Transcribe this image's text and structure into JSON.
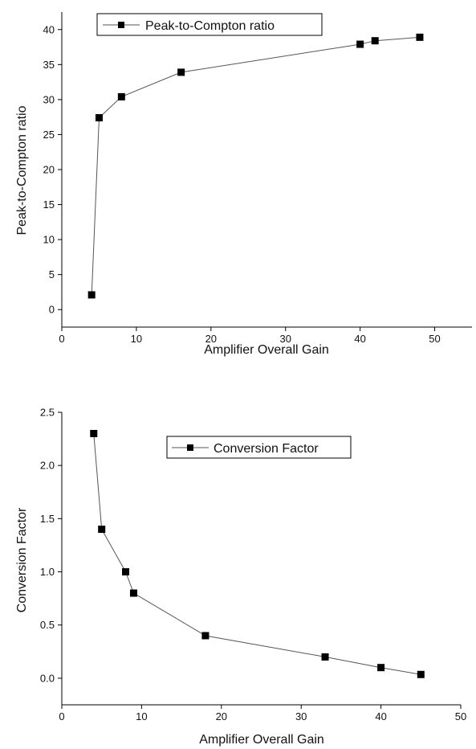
{
  "colors": {
    "line": "#555555",
    "marker": "#000000",
    "axis": "#000000"
  },
  "chart_data": [
    {
      "type": "line",
      "xlabel": "Amplifier Overall Gain",
      "ylabel": "Peak-to-Compton ratio",
      "xlim": [
        0,
        55
      ],
      "ylim": [
        -2.5,
        42.5
      ],
      "xticks": [
        0,
        10,
        20,
        30,
        40,
        50
      ],
      "yticks": [
        0,
        5,
        10,
        15,
        20,
        25,
        30,
        35,
        40
      ],
      "xtick_labels": [
        "0",
        "10",
        "20",
        "30",
        "40",
        "50"
      ],
      "ytick_labels": [
        "0",
        "5",
        "10",
        "15",
        "20",
        "25",
        "30",
        "35",
        "40"
      ],
      "legend_placement": "top-left",
      "grid": false,
      "series": [
        {
          "name": "Peak-to-Compton ratio",
          "marker": "square",
          "x": [
            4,
            5,
            8,
            16,
            40,
            42,
            48
          ],
          "y": [
            2.1,
            27.4,
            30.4,
            33.9,
            37.9,
            38.4,
            38.9
          ]
        }
      ]
    },
    {
      "type": "line",
      "xlabel": "Amplifier Overall Gain",
      "ylabel": "Conversion Factor",
      "xlim": [
        0,
        50
      ],
      "ylim": [
        -0.25,
        2.5
      ],
      "xticks": [
        0,
        10,
        20,
        30,
        40,
        50
      ],
      "yticks": [
        0.0,
        0.5,
        1.0,
        1.5,
        2.0,
        2.5
      ],
      "xtick_labels": [
        "0",
        "10",
        "20",
        "30",
        "40",
        "50"
      ],
      "ytick_labels": [
        "0.0",
        "0.5",
        "1.0",
        "1.5",
        "2.0",
        "2.5"
      ],
      "legend_placement": "top-center",
      "grid": false,
      "series": [
        {
          "name": "Conversion Factor",
          "marker": "square",
          "x": [
            4,
            5,
            8,
            9,
            18,
            33,
            40,
            45
          ],
          "y": [
            2.3,
            1.4,
            1.0,
            0.8,
            0.4,
            0.2,
            0.1,
            0.035
          ]
        }
      ]
    }
  ]
}
